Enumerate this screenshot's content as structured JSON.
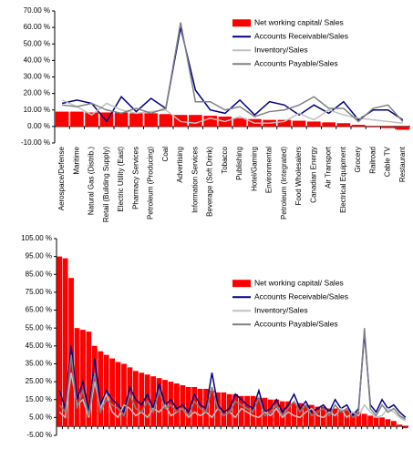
{
  "chart_data": [
    {
      "type": "bar",
      "categories": [
        "Aerospace/Defense",
        "Maritime",
        "Natural Gas (Distrib.)",
        "Retail (Building Supply)",
        "Electric Utility (East)",
        "Pharmacy Services",
        "Petroleum (Producing)",
        "Coal",
        "Advertising",
        "Information Services",
        "Beverage (Soft Drink)",
        "Tobacco",
        "Publishing",
        "Hotel/Gaming",
        "Environmental",
        "Petroleum (Integrated)",
        "Food Wholesalers",
        "Canadian Energy",
        "Air Transport",
        "Electrical Equipment",
        "Grocery",
        "Railroad",
        "Cable TV",
        "Restaurant"
      ],
      "series": [
        {
          "name": "Net working capital/ Sales",
          "type": "bar",
          "color": "#ff0000",
          "values": [
            9,
            9,
            8.5,
            8.5,
            8.5,
            8,
            8,
            7.5,
            7,
            7,
            6.5,
            6,
            5,
            4.5,
            4,
            4,
            3.5,
            3,
            2.5,
            2,
            1,
            -0.5,
            -1,
            -2
          ]
        },
        {
          "name": "Accounts Receivable/Sales",
          "type": "line",
          "color": "#000080",
          "values": [
            14,
            16,
            14,
            3,
            18,
            9,
            17,
            11,
            60,
            22,
            10,
            8,
            16,
            7,
            15,
            13,
            7,
            13,
            8,
            15,
            4,
            10,
            10,
            4
          ]
        },
        {
          "name": "Inventory/Sales",
          "type": "line",
          "color": "#c0c0c0",
          "values": [
            16,
            12,
            7,
            14,
            10,
            8,
            9,
            10,
            3,
            2,
            5,
            3,
            6,
            2,
            2,
            3,
            8,
            4,
            10,
            7,
            5,
            4,
            3,
            2
          ]
        },
        {
          "name": "Accounts Payable/Sales",
          "type": "line",
          "color": "#808080",
          "values": [
            13,
            12,
            14,
            10,
            8,
            11,
            8,
            11,
            63,
            15,
            15,
            10,
            12,
            6,
            9,
            10,
            13,
            18,
            11,
            11,
            3,
            11,
            13,
            3
          ]
        }
      ],
      "ylim": [
        -10,
        70
      ],
      "yticks": [
        {
          "value": -10,
          "label": "-10.00 %"
        },
        {
          "value": 0,
          "label": "0.00 %"
        },
        {
          "value": 10,
          "label": "10.00 %"
        },
        {
          "value": 20,
          "label": "20.00 %"
        },
        {
          "value": 30,
          "label": "30.00 %"
        },
        {
          "value": 40,
          "label": "40.00 %"
        },
        {
          "value": 50,
          "label": "50.00 %"
        },
        {
          "value": 60,
          "label": "60.00 %"
        },
        {
          "value": 70,
          "label": "70.00 %"
        }
      ],
      "legend": "upper right"
    },
    {
      "type": "bar",
      "categories": [
        null,
        null,
        null,
        null,
        null,
        null,
        null,
        null,
        null,
        null,
        null,
        null,
        null,
        null,
        null,
        null,
        null,
        null,
        null,
        null,
        null,
        null,
        null,
        null,
        null,
        null,
        null,
        null,
        null,
        null,
        null,
        null,
        null,
        null,
        null,
        null,
        null,
        null,
        null,
        null,
        null,
        null,
        null,
        null,
        null,
        null,
        null,
        null,
        null,
        null,
        null,
        null,
        null,
        null,
        null,
        null,
        null,
        null,
        null,
        null
      ],
      "series": [
        {
          "name": "Net working capital/ Sales",
          "type": "bar",
          "color": "#ff0000",
          "values": [
            95,
            94,
            83,
            55,
            54,
            53,
            45,
            42,
            40,
            38,
            36,
            35,
            33,
            31,
            30,
            29,
            28,
            27,
            26,
            25,
            24,
            23,
            22,
            22,
            21,
            21,
            20,
            19,
            19,
            18,
            18,
            17,
            17,
            17,
            16,
            16,
            15,
            15,
            14,
            14,
            13,
            13,
            12,
            12,
            11,
            11,
            10,
            10,
            9,
            9,
            8,
            8,
            7,
            6,
            5,
            5,
            4,
            3,
            1,
            -1
          ]
        },
        {
          "name": "Accounts Receivable/Sales",
          "type": "line",
          "color": "#000080",
          "values": [
            20,
            10,
            45,
            15,
            25,
            8,
            38,
            12,
            20,
            15,
            12,
            8,
            22,
            15,
            12,
            18,
            10,
            24,
            12,
            15,
            10,
            12,
            8,
            18,
            12,
            10,
            30,
            12,
            8,
            10,
            18,
            15,
            12,
            10,
            20,
            8,
            10,
            15,
            8,
            12,
            18,
            10,
            14,
            8,
            10,
            12,
            8,
            15,
            10,
            12,
            6,
            10,
            52,
            12,
            8,
            15,
            10,
            12,
            8,
            5
          ]
        },
        {
          "name": "Inventory/Sales",
          "type": "line",
          "color": "#c0c0c0",
          "values": [
            8,
            5,
            30,
            12,
            15,
            5,
            25,
            10,
            18,
            8,
            5,
            12,
            10,
            6,
            8,
            5,
            10,
            8,
            12,
            6,
            8,
            10,
            5,
            8,
            6,
            8,
            5,
            10,
            6,
            8,
            5,
            10,
            8,
            6,
            5,
            8,
            6,
            10,
            5,
            8,
            6,
            5,
            8,
            10,
            6,
            5,
            8,
            6,
            10,
            5,
            8,
            6,
            12,
            8,
            5,
            6,
            10,
            8,
            5,
            3
          ]
        },
        {
          "name": "Accounts Payable/Sales",
          "type": "line",
          "color": "#808080",
          "values": [
            12,
            8,
            40,
            10,
            20,
            6,
            30,
            8,
            15,
            12,
            10,
            6,
            18,
            10,
            8,
            14,
            8,
            20,
            10,
            12,
            8,
            10,
            6,
            14,
            10,
            8,
            22,
            10,
            6,
            8,
            14,
            12,
            10,
            8,
            16,
            6,
            8,
            12,
            6,
            10,
            14,
            8,
            12,
            6,
            8,
            10,
            6,
            12,
            8,
            10,
            5,
            8,
            55,
            10,
            6,
            12,
            8,
            10,
            6,
            4
          ]
        }
      ],
      "ylim": [
        -5,
        105
      ],
      "yticks": [
        {
          "value": -5,
          "label": "-5.00 %"
        },
        {
          "value": 5,
          "label": "5.00 %"
        },
        {
          "value": 15,
          "label": "15.00 %"
        },
        {
          "value": 25,
          "label": "25.00 %"
        },
        {
          "value": 35,
          "label": "35.00 %"
        },
        {
          "value": 45,
          "label": "45.00 %"
        },
        {
          "value": 55,
          "label": "55.00 %"
        },
        {
          "value": 65,
          "label": "65.00 %"
        },
        {
          "value": 75,
          "label": "75.00 %"
        },
        {
          "value": 85,
          "label": "85.00 %"
        },
        {
          "value": 95,
          "label": "95.00 %"
        },
        {
          "value": 105,
          "label": "105.00 %"
        }
      ],
      "legend": "center right"
    }
  ]
}
